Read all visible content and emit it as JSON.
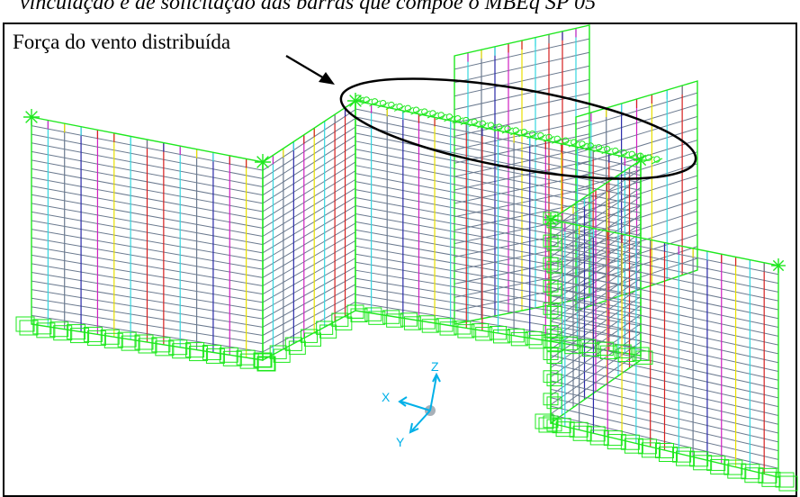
{
  "figure": {
    "caption": "vinculação e de solicitação das barras que compõe o MBEq SP 05",
    "annotation_label": "Força do vento distribuída"
  },
  "axes": {
    "z": "Z",
    "x": "X",
    "y": "Y",
    "color": "#00b0e8"
  },
  "colors": {
    "mesh_outline": "#1ee81e",
    "horizontal_bars": "#6b7a8f",
    "vertical_red": "#d62020",
    "vertical_cyan": "#36d7e0",
    "vertical_blue": "#2a2aa8",
    "vertical_magenta": "#d020c0",
    "vertical_yellow": "#e8e000",
    "ellipse": "#000000"
  },
  "icons": [
    "support-symbol-icon",
    "wind-load-symbol-icon",
    "node-star-icon",
    "arrow-icon"
  ]
}
